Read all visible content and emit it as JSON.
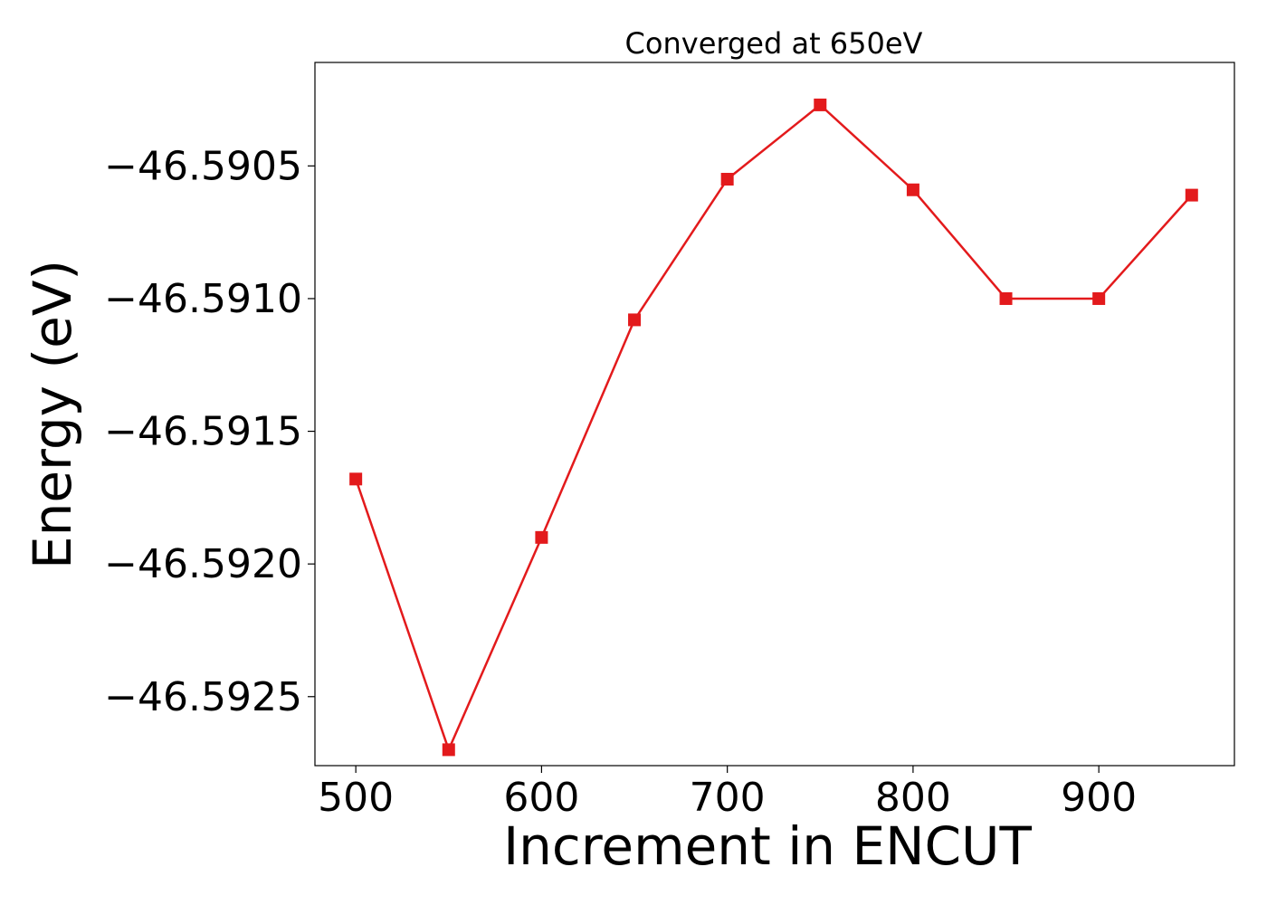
{
  "chart_data": {
    "type": "line",
    "title": "Converged at 650eV",
    "xlabel": "Increment in ENCUT",
    "ylabel": "Energy (eV)",
    "x": [
      500,
      550,
      600,
      650,
      700,
      750,
      800,
      850,
      900,
      950
    ],
    "series": [
      {
        "values": [
          -46.59168,
          -46.5927,
          -46.5919,
          -46.59108,
          -46.59055,
          -46.59027,
          -46.59059,
          -46.591,
          -46.591,
          -46.59061
        ],
        "color": "#e31a1c",
        "marker": "square"
      }
    ],
    "xlim": [
      478,
      973
    ],
    "ylim": [
      -46.59276,
      -46.59011
    ],
    "xticks": [
      500,
      600,
      700,
      800,
      900
    ],
    "xtick_labels": [
      "500",
      "600",
      "700",
      "800",
      "900"
    ],
    "yticks": [
      -46.5905,
      -46.591,
      -46.5915,
      -46.592,
      -46.5925
    ],
    "ytick_labels": [
      "−46.5905",
      "−46.5910",
      "−46.5915",
      "−46.5920",
      "−46.5925"
    ],
    "grid": false,
    "legend": false
  }
}
